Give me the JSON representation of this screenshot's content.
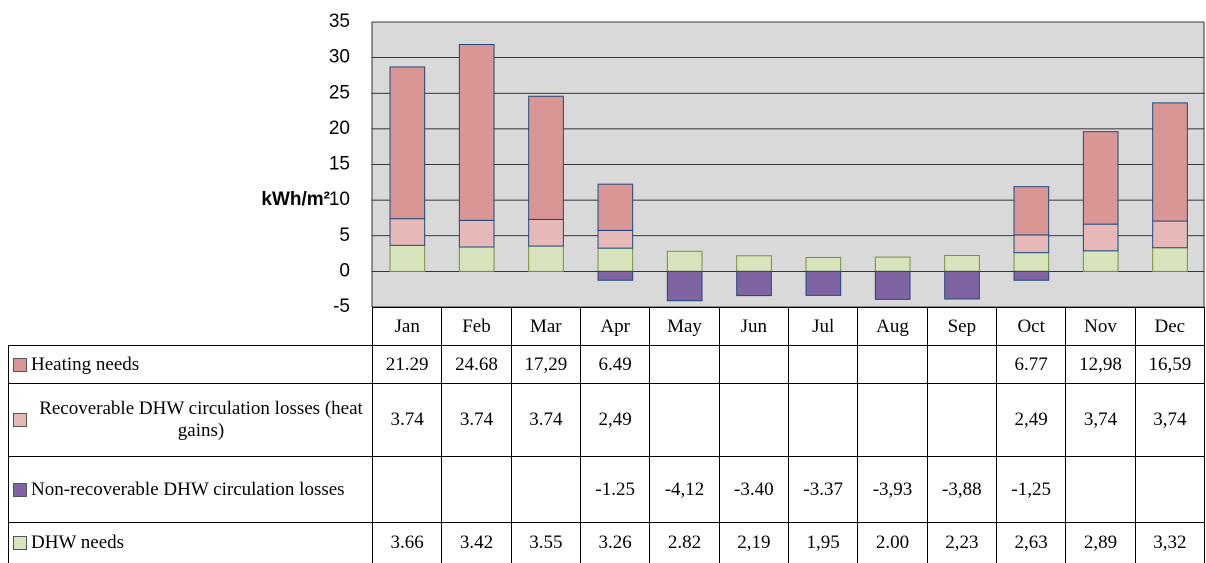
{
  "chart_data": {
    "type": "bar",
    "stacked": true,
    "y_label": "kWh/m²",
    "categories": [
      "Jan",
      "Feb",
      "Mar",
      "Apr",
      "May",
      "Jun",
      "Jul",
      "Aug",
      "Sep",
      "Oct",
      "Nov",
      "Dec"
    ],
    "ylim": [
      -5,
      35
    ],
    "yticks": [
      -5,
      0,
      5,
      10,
      15,
      20,
      25,
      30,
      35
    ],
    "grid": true,
    "series": [
      {
        "name": "Heating needs",
        "color": "#d99694",
        "values": [
          21.29,
          24.68,
          17.29,
          6.49,
          null,
          null,
          null,
          null,
          null,
          6.77,
          12.98,
          16.59
        ],
        "value_labels": [
          "21.29",
          "24.68",
          "17,29",
          "6.49",
          null,
          null,
          null,
          null,
          null,
          "6.77",
          "12,98",
          "16,59"
        ]
      },
      {
        "name": "Recoverable DHW circulation losses (heat gains)",
        "color": "#e6b9b8",
        "values": [
          3.74,
          3.74,
          3.74,
          2.49,
          null,
          null,
          null,
          null,
          null,
          2.49,
          3.74,
          3.74
        ],
        "value_labels": [
          "3.74",
          "3.74",
          "3.74",
          "2,49",
          null,
          null,
          null,
          null,
          null,
          "2,49",
          "3,74",
          "3,74"
        ]
      },
      {
        "name": "Non-recoverable DHW circulation losses",
        "color": "#8064a2",
        "values": [
          null,
          null,
          null,
          -1.25,
          -4.12,
          -3.4,
          -3.37,
          -3.93,
          -3.88,
          -1.25,
          null,
          null
        ],
        "value_labels": [
          null,
          null,
          null,
          "-1.25",
          "-4,12",
          "-3.40",
          "-3.37",
          "-3,93",
          "-3,88",
          "-1,25",
          null,
          null
        ]
      },
      {
        "name": "DHW needs",
        "color": "#d7e4bd",
        "values": [
          3.66,
          3.42,
          3.55,
          3.26,
          2.82,
          2.19,
          1.95,
          2.0,
          2.23,
          2.63,
          2.89,
          3.32
        ],
        "value_labels": [
          "3.66",
          "3.42",
          "3.55",
          "3.26",
          "2.82",
          "2,19",
          "1,95",
          "2.00",
          "2,23",
          "2,63",
          "2,89",
          "3,32"
        ]
      }
    ]
  }
}
